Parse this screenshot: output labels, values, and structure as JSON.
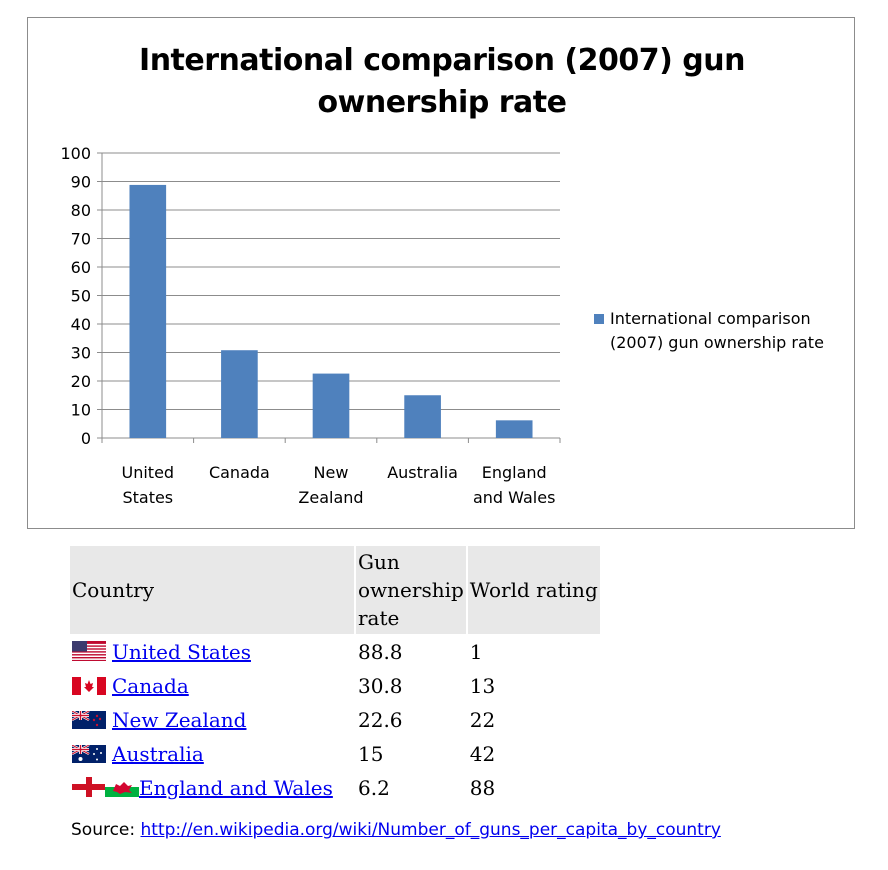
{
  "chart_data": {
    "type": "bar",
    "title_lines": [
      "International comparison (2007) gun",
      "ownership rate"
    ],
    "categories": [
      [
        "United",
        "States"
      ],
      [
        "Canada"
      ],
      [
        "New",
        "Zealand"
      ],
      [
        "Australia"
      ],
      [
        "England",
        "and Wales"
      ]
    ],
    "series": [
      {
        "name": "International comparison (2007) gun ownership rate",
        "values": [
          88.8,
          30.8,
          22.6,
          15,
          6.2
        ]
      }
    ],
    "ylim": [
      0,
      100
    ],
    "yticks": [
      "0",
      "10",
      "20",
      "30",
      "40",
      "50",
      "60",
      "70",
      "80",
      "90",
      "100"
    ],
    "grid": true,
    "legend_position": "right",
    "bar_color": "#4f81bd"
  },
  "legend": {
    "text_lines": [
      "International comparison",
      "(2007) gun ownership rate"
    ]
  },
  "table": {
    "headers": {
      "country": "Country",
      "rate_lines": [
        "Gun",
        "ownership",
        "rate"
      ],
      "rating": "World rating"
    },
    "rows": [
      {
        "country": "United States",
        "rate": "88.8",
        "rating": "1",
        "flag": "usa-flag"
      },
      {
        "country": "Canada",
        "rate": "30.8",
        "rating": "13",
        "flag": "canada-flag"
      },
      {
        "country": "New Zealand",
        "rate": "22.6",
        "rating": "22",
        "flag": "new-zealand-flag"
      },
      {
        "country": "Australia",
        "rate": "15",
        "rating": "42",
        "flag": "australia-flag"
      },
      {
        "country": "England and Wales",
        "rate": "6.2",
        "rating": "88",
        "flag": "england-wales-flags"
      }
    ]
  },
  "source": {
    "label": "Source: ",
    "url": "http://en.wikipedia.org/wiki/Number_of_guns_per_capita_by_country"
  }
}
